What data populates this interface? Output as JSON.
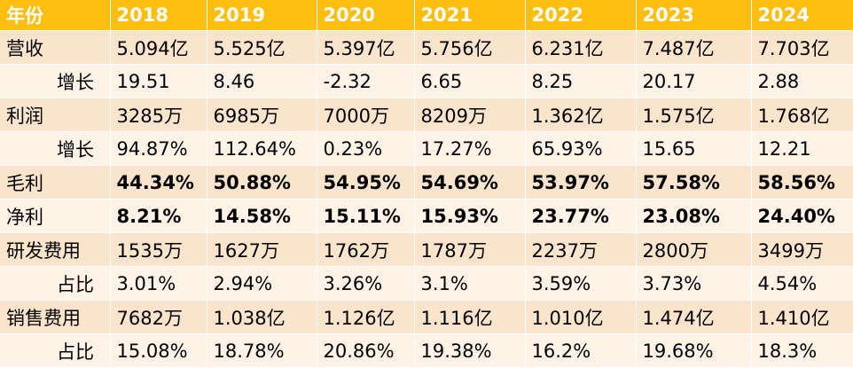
{
  "header": {
    "label": "年份",
    "years": [
      "2018",
      "2019",
      "2020",
      "2021",
      "2022",
      "2023",
      "2024"
    ]
  },
  "rows": [
    {
      "label": "营收",
      "values": [
        "5.094亿",
        "5.525亿",
        "5.397亿",
        "5.756亿",
        "6.231亿",
        "7.487亿",
        "7.703亿"
      ]
    },
    {
      "label": "增长",
      "values": [
        "19.51",
        "8.46",
        "-2.32",
        "6.65",
        "8.25",
        "20.17",
        "2.88"
      ]
    },
    {
      "label": "利润",
      "values": [
        "3285万",
        "6985万",
        "7000万",
        "8209万",
        "1.362亿",
        "1.575亿",
        "1.768亿"
      ]
    },
    {
      "label": "增长",
      "values": [
        "94.87%",
        "112.64%",
        "0.23%",
        "17.27%",
        "65.93%",
        "15.65",
        "12.21"
      ]
    },
    {
      "label": "毛利",
      "values": [
        "44.34%",
        "50.88%",
        "54.95%",
        "54.69%",
        "53.97%",
        "57.58%",
        "58.56%"
      ]
    },
    {
      "label": "净利",
      "values": [
        "8.21%",
        "14.58%",
        "15.11%",
        "15.93%",
        "23.77%",
        "23.08%",
        "24.40%"
      ]
    },
    {
      "label": "研发费用",
      "values": [
        "1535万",
        "1627万",
        "1762万",
        "1787万",
        "2237万",
        "2800万",
        "3499万"
      ]
    },
    {
      "label": "占比",
      "values": [
        "3.01%",
        "2.94%",
        "3.26%",
        "3.1%",
        "3.59%",
        "3.73%",
        "4.54%"
      ]
    },
    {
      "label": "销售费用",
      "values": [
        "7682万",
        "1.038亿",
        "1.126亿",
        "1.116亿",
        "1.010亿",
        "1.474亿",
        "1.410亿"
      ]
    },
    {
      "label": "占比",
      "values": [
        "15.08%",
        "18.78%",
        "20.86%",
        "19.38%",
        "16.2%",
        "19.68%",
        "18.3%"
      ]
    }
  ]
}
